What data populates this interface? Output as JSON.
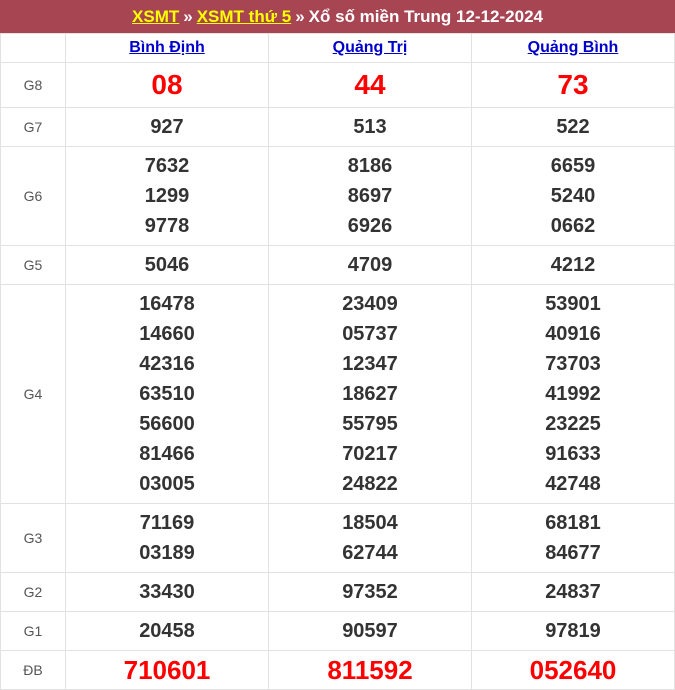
{
  "breadcrumb": {
    "link1": "XSMT",
    "separator1": "»",
    "link2": "XSMT thứ 5",
    "separator2": "»",
    "title_rest": "Xổ số miền Trung 12-12-2024"
  },
  "colors": {
    "header_background": "#a84553",
    "header_link": "#ffff00",
    "header_text": "#ffffff",
    "province_link": "#0000cc",
    "special_number": "#ff0000",
    "normal_number": "#333333",
    "prize_label": "#555555",
    "border": "#e2e2e2"
  },
  "table": {
    "provinces": [
      "Bình Định",
      "Quảng Trị",
      "Quảng Bình"
    ],
    "rows": [
      {
        "label": "G8",
        "style": "red-large",
        "values": [
          [
            "08"
          ],
          [
            "44"
          ],
          [
            "73"
          ]
        ]
      },
      {
        "label": "G7",
        "style": "normal",
        "values": [
          [
            "927"
          ],
          [
            "513"
          ],
          [
            "522"
          ]
        ]
      },
      {
        "label": "G6",
        "style": "normal",
        "values": [
          [
            "7632",
            "1299",
            "9778"
          ],
          [
            "8186",
            "8697",
            "6926"
          ],
          [
            "6659",
            "5240",
            "0662"
          ]
        ]
      },
      {
        "label": "G5",
        "style": "normal",
        "values": [
          [
            "5046"
          ],
          [
            "4709"
          ],
          [
            "4212"
          ]
        ]
      },
      {
        "label": "G4",
        "style": "normal",
        "values": [
          [
            "16478",
            "14660",
            "42316",
            "63510",
            "56600",
            "81466",
            "03005"
          ],
          [
            "23409",
            "05737",
            "12347",
            "18627",
            "55795",
            "70217",
            "24822"
          ],
          [
            "53901",
            "40916",
            "73703",
            "41992",
            "23225",
            "91633",
            "42748"
          ]
        ]
      },
      {
        "label": "G3",
        "style": "normal",
        "values": [
          [
            "71169",
            "03189"
          ],
          [
            "18504",
            "62744"
          ],
          [
            "68181",
            "84677"
          ]
        ]
      },
      {
        "label": "G2",
        "style": "normal",
        "values": [
          [
            "33430"
          ],
          [
            "97352"
          ],
          [
            "24837"
          ]
        ]
      },
      {
        "label": "G1",
        "style": "normal",
        "values": [
          [
            "20458"
          ],
          [
            "90597"
          ],
          [
            "97819"
          ]
        ]
      },
      {
        "label": "ĐB",
        "style": "red-db",
        "values": [
          [
            "710601"
          ],
          [
            "811592"
          ],
          [
            "052640"
          ]
        ]
      }
    ]
  }
}
